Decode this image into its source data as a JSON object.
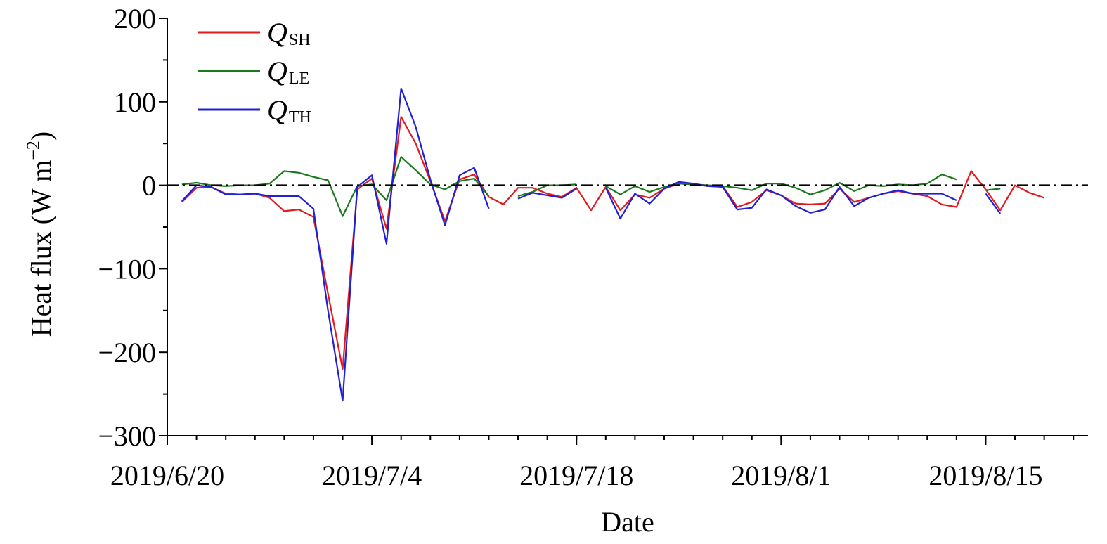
{
  "chart_data": {
    "type": "line",
    "xlabel": "Date",
    "ylabel": "Heat flux (W m−2)",
    "ylabel_parts": {
      "main": "Heat flux (W m",
      "sup": "−2",
      "end": ")"
    },
    "ylim": [
      -300,
      200
    ],
    "yticks": [
      200,
      100,
      0,
      -100,
      -200,
      -300
    ],
    "ytick_labels": [
      "200",
      "100",
      "0",
      "−100",
      "−200",
      "−300"
    ],
    "xlim": [
      "2019-06-20",
      "2019-08-22"
    ],
    "xticks": [
      "2019-06-20",
      "2019-07-04",
      "2019-07-18",
      "2019-08-01",
      "2019-08-15"
    ],
    "xtick_labels": [
      "2019/6/20",
      "2019/7/4",
      "2019/7/18",
      "2019/8/1",
      "2019/8/15"
    ],
    "zero_line": true,
    "grid": false,
    "legend_position": "top-left",
    "series": [
      {
        "name": "QSH",
        "label_main": "Q",
        "label_sub": "SH",
        "color": "#e31a1c",
        "points": [
          [
            "2019-06-21",
            -20
          ],
          [
            "2019-06-22",
            -3
          ],
          [
            "2019-06-23",
            -2
          ],
          [
            "2019-06-24",
            -10
          ],
          [
            "2019-06-25",
            -11
          ],
          [
            "2019-06-26",
            -10
          ],
          [
            "2019-06-27",
            -15
          ],
          [
            "2019-06-28",
            -31
          ],
          [
            "2019-06-29",
            -29
          ],
          [
            "2019-06-30",
            -38
          ],
          [
            "2019-07-01",
            -130
          ],
          [
            "2019-07-02",
            -220
          ],
          [
            "2019-07-03",
            -5
          ],
          [
            "2019-07-04",
            8
          ],
          [
            "2019-07-05",
            -52
          ],
          [
            "2019-07-06",
            82
          ],
          [
            "2019-07-07",
            50
          ],
          [
            "2019-07-08",
            5
          ],
          [
            "2019-07-09",
            -43
          ],
          [
            "2019-07-10",
            7
          ],
          [
            "2019-07-11",
            13
          ],
          [
            "2019-07-12",
            -14
          ],
          [
            "2019-07-13",
            -23
          ],
          [
            "2019-07-14",
            -3
          ],
          [
            "2019-07-15",
            -3
          ],
          [
            "2019-07-16",
            -10
          ],
          [
            "2019-07-17",
            -14
          ],
          [
            "2019-07-18",
            -3
          ],
          [
            "2019-07-19",
            -30
          ],
          [
            "2019-07-20",
            -2
          ],
          [
            "2019-07-21",
            -30
          ],
          [
            "2019-07-22",
            -11
          ],
          [
            "2019-07-23",
            -15
          ],
          [
            "2019-07-24",
            -4
          ],
          [
            "2019-07-25",
            2
          ],
          [
            "2019-07-26",
            1
          ],
          [
            "2019-07-27",
            -1
          ],
          [
            "2019-07-28",
            -1
          ],
          [
            "2019-07-29",
            -26
          ],
          [
            "2019-07-30",
            -20
          ],
          [
            "2019-07-31",
            -6
          ],
          [
            "2019-08-01",
            -12
          ],
          [
            "2019-08-02",
            -22
          ],
          [
            "2019-08-03",
            -23
          ],
          [
            "2019-08-04",
            -22
          ],
          [
            "2019-08-05",
            -4
          ],
          [
            "2019-08-06",
            -20
          ],
          [
            "2019-08-07",
            -15
          ],
          [
            "2019-08-08",
            -10
          ],
          [
            "2019-08-09",
            -7
          ],
          [
            "2019-08-10",
            -10
          ],
          [
            "2019-08-11",
            -13
          ],
          [
            "2019-08-12",
            -23
          ],
          [
            "2019-08-13",
            -26
          ],
          [
            "2019-08-14",
            17
          ],
          [
            "2019-08-15",
            -5
          ],
          [
            "2019-08-16",
            -30
          ],
          [
            "2019-08-17",
            0
          ],
          [
            "2019-08-18",
            -9
          ],
          [
            "2019-08-19",
            -15
          ]
        ]
      },
      {
        "name": "QLE",
        "label_main": "Q",
        "label_sub": "LE",
        "color": "#1a7a1a",
        "points": [
          [
            "2019-06-21",
            1
          ],
          [
            "2019-06-22",
            3
          ],
          [
            "2019-06-23",
            0
          ],
          [
            "2019-06-24",
            -1
          ],
          [
            "2019-06-25",
            0
          ],
          [
            "2019-06-26",
            0
          ],
          [
            "2019-06-27",
            2
          ],
          [
            "2019-06-28",
            17
          ],
          [
            "2019-06-29",
            15
          ],
          [
            "2019-06-30",
            10
          ],
          [
            "2019-07-01",
            6
          ],
          [
            "2019-07-02",
            -37
          ],
          [
            "2019-07-03",
            -1
          ],
          [
            "2019-07-04",
            1
          ],
          [
            "2019-07-05",
            -18
          ],
          [
            "2019-07-06",
            34
          ],
          [
            "2019-07-07",
            18
          ],
          [
            "2019-07-08",
            1
          ],
          [
            "2019-07-09",
            -5
          ],
          [
            "2019-07-10",
            5
          ],
          [
            "2019-07-11",
            8
          ],
          [
            "2019-07-12",
            -13
          ],
          null,
          [
            "2019-07-14",
            -13
          ],
          [
            "2019-07-15",
            -8
          ],
          [
            "2019-07-16",
            0
          ],
          [
            "2019-07-17",
            0
          ],
          [
            "2019-07-18",
            1
          ],
          null,
          [
            "2019-07-20",
            -1
          ],
          [
            "2019-07-21",
            -11
          ],
          [
            "2019-07-22",
            -1
          ],
          [
            "2019-07-23",
            -8
          ],
          [
            "2019-07-24",
            -2
          ],
          [
            "2019-07-25",
            2
          ],
          [
            "2019-07-26",
            1
          ],
          [
            "2019-07-27",
            0
          ],
          [
            "2019-07-28",
            -1
          ],
          [
            "2019-07-29",
            -3
          ],
          [
            "2019-07-30",
            -6
          ],
          [
            "2019-07-31",
            2
          ],
          [
            "2019-08-01",
            2
          ],
          [
            "2019-08-02",
            -3
          ],
          [
            "2019-08-03",
            -11
          ],
          [
            "2019-08-04",
            -6
          ],
          [
            "2019-08-05",
            3
          ],
          [
            "2019-08-06",
            -7
          ],
          [
            "2019-08-07",
            0
          ],
          [
            "2019-08-08",
            -1
          ],
          [
            "2019-08-09",
            1
          ],
          [
            "2019-08-10",
            0
          ],
          [
            "2019-08-11",
            2
          ],
          [
            "2019-08-12",
            13
          ],
          [
            "2019-08-13",
            7
          ],
          null,
          [
            "2019-08-15",
            -6
          ],
          [
            "2019-08-16",
            -4
          ]
        ]
      },
      {
        "name": "QTH",
        "label_main": "Q",
        "label_sub": "TH",
        "color": "#1f1fd6",
        "points": [
          [
            "2019-06-21",
            -19
          ],
          [
            "2019-06-22",
            0
          ],
          [
            "2019-06-23",
            -2
          ],
          [
            "2019-06-24",
            -11
          ],
          [
            "2019-06-25",
            -11
          ],
          [
            "2019-06-26",
            -10
          ],
          [
            "2019-06-27",
            -13
          ],
          [
            "2019-06-28",
            -13
          ],
          [
            "2019-06-29",
            -13
          ],
          [
            "2019-06-30",
            -28
          ],
          [
            "2019-07-01",
            -150
          ],
          [
            "2019-07-02",
            -258
          ],
          [
            "2019-07-03",
            -2
          ],
          [
            "2019-07-04",
            12
          ],
          [
            "2019-07-05",
            -70
          ],
          [
            "2019-07-06",
            116
          ],
          [
            "2019-07-07",
            70
          ],
          [
            "2019-07-08",
            7
          ],
          [
            "2019-07-09",
            -48
          ],
          [
            "2019-07-10",
            12
          ],
          [
            "2019-07-11",
            21
          ],
          [
            "2019-07-12",
            -28
          ],
          null,
          [
            "2019-07-14",
            -16
          ],
          [
            "2019-07-15",
            -9
          ],
          [
            "2019-07-16",
            -12
          ],
          [
            "2019-07-17",
            -15
          ],
          [
            "2019-07-18",
            -4
          ],
          null,
          [
            "2019-07-20",
            -3
          ],
          [
            "2019-07-21",
            -40
          ],
          [
            "2019-07-22",
            -10
          ],
          [
            "2019-07-23",
            -22
          ],
          [
            "2019-07-24",
            -4
          ],
          [
            "2019-07-25",
            4
          ],
          [
            "2019-07-26",
            2
          ],
          [
            "2019-07-27",
            -1
          ],
          [
            "2019-07-28",
            -2
          ],
          [
            "2019-07-29",
            -29
          ],
          [
            "2019-07-30",
            -27
          ],
          [
            "2019-07-31",
            -5
          ],
          [
            "2019-08-01",
            -12
          ],
          [
            "2019-08-02",
            -25
          ],
          [
            "2019-08-03",
            -33
          ],
          [
            "2019-08-04",
            -29
          ],
          [
            "2019-08-05",
            -2
          ],
          [
            "2019-08-06",
            -25
          ],
          [
            "2019-08-07",
            -15
          ],
          [
            "2019-08-08",
            -10
          ],
          [
            "2019-08-09",
            -6
          ],
          [
            "2019-08-10",
            -10
          ],
          [
            "2019-08-11",
            -10
          ],
          [
            "2019-08-12",
            -10
          ],
          [
            "2019-08-13",
            -18
          ],
          null,
          [
            "2019-08-15",
            -10
          ],
          [
            "2019-08-16",
            -34
          ]
        ]
      }
    ]
  }
}
